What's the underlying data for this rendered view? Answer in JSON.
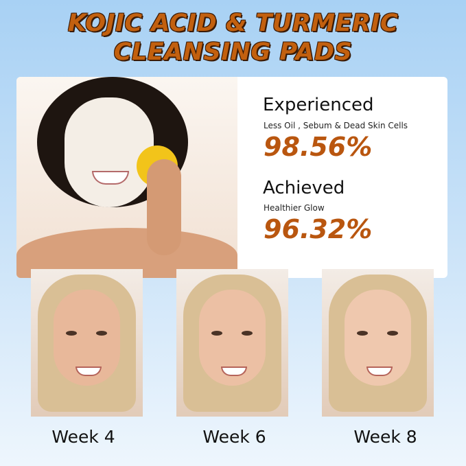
{
  "title": {
    "line1": "KOJIC ACID & TURMERIC",
    "line2": "CLEANSING PADS"
  },
  "colors": {
    "accent": "#b9560f",
    "background_top": "#a8d1f4",
    "background_bottom": "#eef6fd"
  },
  "stats": [
    {
      "heading": "Experienced",
      "subtitle": "Less Oil , Sebum & Dead Skin Cells",
      "value": "98.56%"
    },
    {
      "heading": "Achieved",
      "subtitle": "Healthier Glow",
      "value": "96.32%"
    }
  ],
  "weeks": [
    {
      "label": "Week 4"
    },
    {
      "label": "Week 6"
    },
    {
      "label": "Week 8"
    }
  ]
}
